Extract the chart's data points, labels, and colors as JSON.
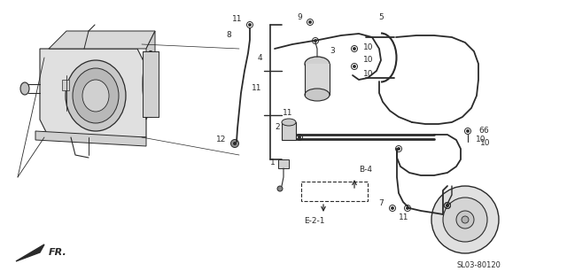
{
  "bg_color": "#ffffff",
  "line_color": "#2a2a2a",
  "diagram_code": "SL03-80120",
  "fr_label": "FR.",
  "figsize": [
    6.4,
    3.15
  ],
  "dpi": 100
}
